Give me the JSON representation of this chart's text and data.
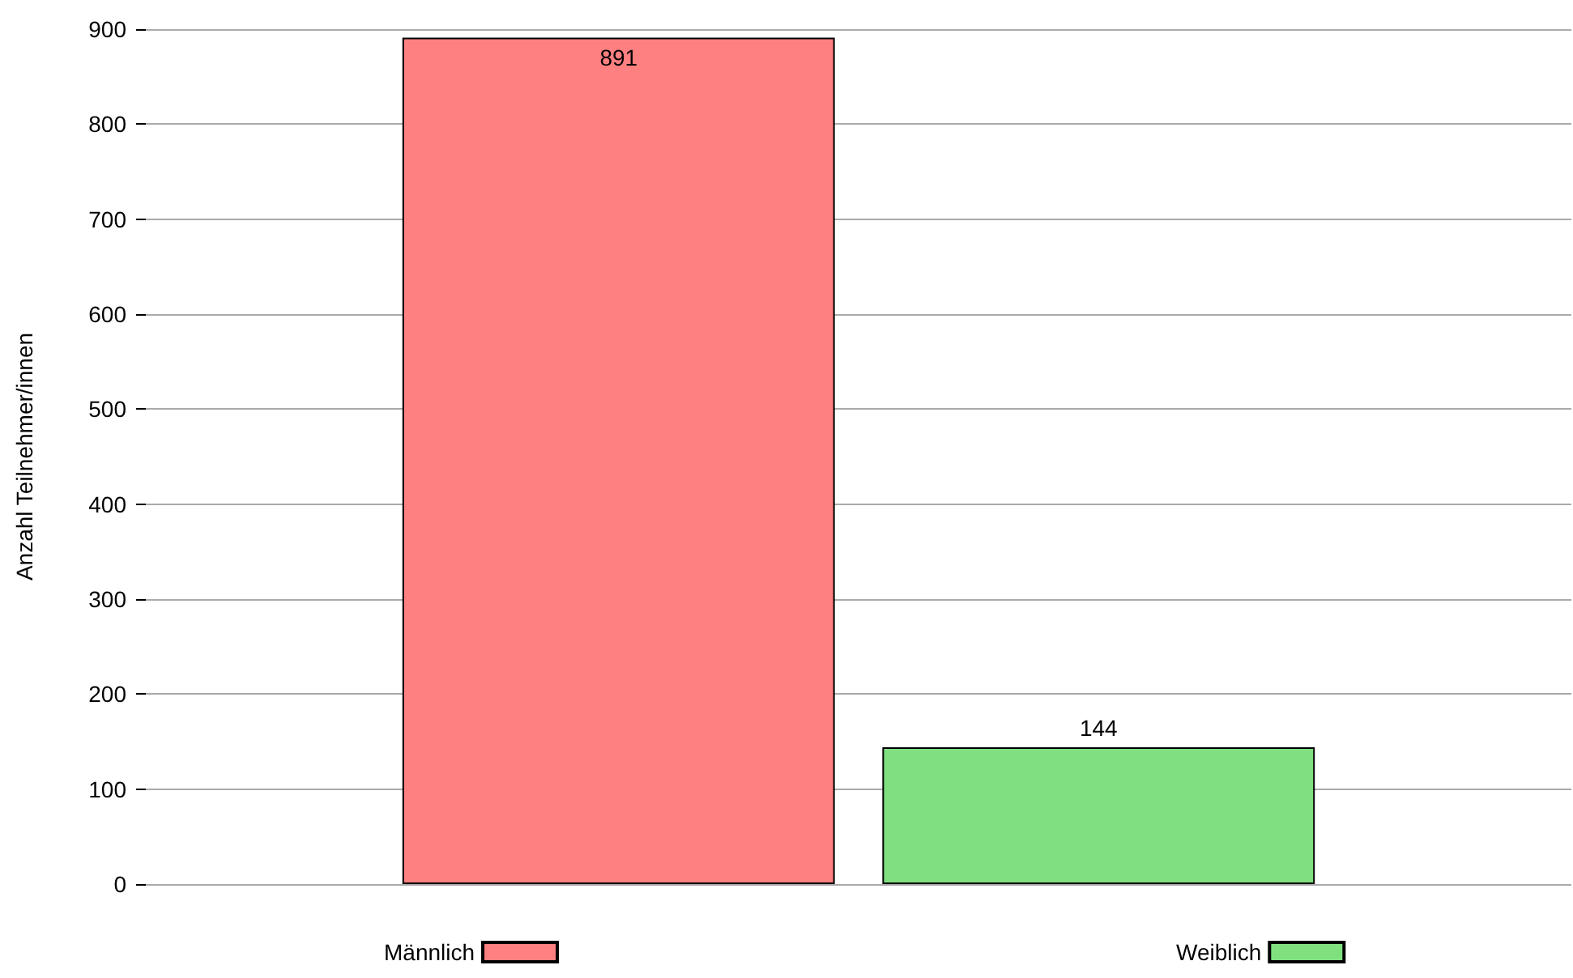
{
  "chart_data": {
    "type": "bar",
    "ylabel": "Anzahl Teilnehmer/innen",
    "categories": [
      null
    ],
    "series": [
      {
        "name": "Männlich",
        "color": "#ff8080",
        "values": [
          891
        ]
      },
      {
        "name": "Weiblich",
        "color": "#80e080",
        "values": [
          144
        ]
      }
    ],
    "ylim": [
      0,
      900
    ],
    "yticks": [
      0,
      100,
      200,
      300,
      400,
      500,
      600,
      700,
      800,
      900
    ],
    "grid": "y",
    "legend": "bottom",
    "data_labels": true
  }
}
